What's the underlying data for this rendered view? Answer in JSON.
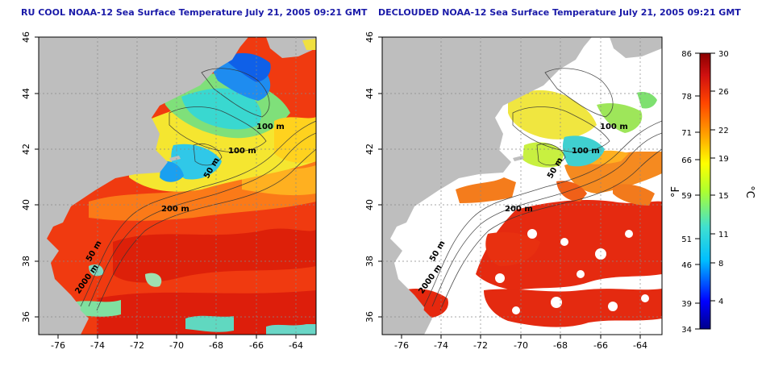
{
  "panels": [
    {
      "title": "RU COOL NOAA-12 Sea Surface Temperature July 21, 2005 09:21 GMT",
      "map_type": "raw"
    },
    {
      "title": "DECLOUDED NOAA-12 Sea Surface Temperature July 21, 2005 09:21 GMT",
      "map_type": "declouded"
    }
  ],
  "axes": {
    "x_ticks": [
      "-76",
      "-74",
      "-72",
      "-70",
      "-68",
      "-66",
      "-64"
    ],
    "y_ticks": [
      "46",
      "44",
      "42",
      "40",
      "38",
      "36"
    ],
    "lon_range": [
      -77,
      -63
    ],
    "lat_range": [
      35,
      46
    ]
  },
  "contour_labels": [
    "100 m",
    "100 m",
    "50 m",
    "200 m",
    "50 m",
    "2000 m"
  ],
  "colorbar": {
    "f_label": "°F",
    "c_label": "°C",
    "f_ticks": [
      "86",
      "78",
      "71",
      "66",
      "59",
      "51",
      "46",
      "39",
      "34"
    ],
    "c_ticks": [
      "30",
      "26",
      "22",
      "19",
      "15",
      "11",
      "8",
      "4"
    ],
    "colors": [
      "#00008b",
      "#0000ff",
      "#00bfff",
      "#40e0d0",
      "#adff2f",
      "#ffff00",
      "#ffa500",
      "#ff4500",
      "#b22222",
      "#8b0000"
    ]
  },
  "colors": {
    "land": "#bebebe",
    "title": "#1a1aa8",
    "grid": "#888888"
  }
}
